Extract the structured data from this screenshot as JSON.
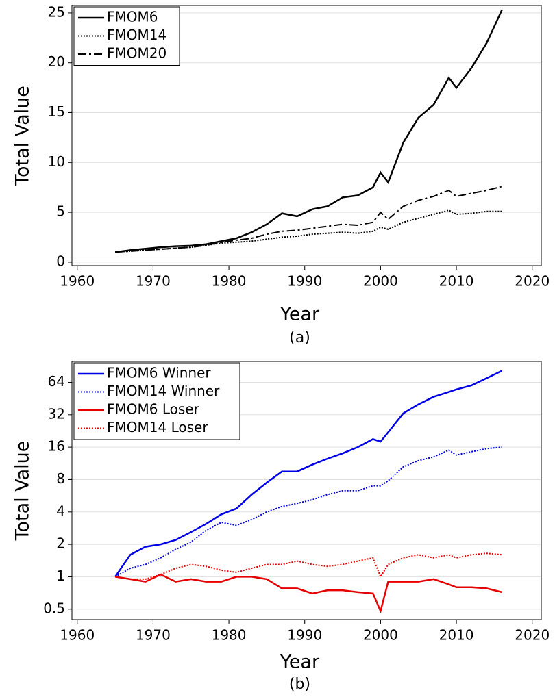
{
  "chart_data": [
    {
      "type": "line",
      "caption": "(a)",
      "xlabel": "Year",
      "ylabel": "Total Value",
      "xlim": [
        1959.3,
        2021.2
      ],
      "xticks": [
        1960,
        1970,
        1980,
        1990,
        2000,
        2010,
        2020
      ],
      "ylim": [
        -0.35,
        25.75
      ],
      "yticks": [
        0,
        5,
        10,
        15,
        20,
        25
      ],
      "log_y": false,
      "grid": true,
      "legend": "upper left",
      "x": [
        1965,
        1967,
        1969,
        1971,
        1973,
        1975,
        1977,
        1979,
        1981,
        1983,
        1985,
        1987,
        1989,
        1991,
        1993,
        1995,
        1997,
        1999,
        2000,
        2001,
        2003,
        2005,
        2007,
        2009,
        2010,
        2012,
        2014,
        2016
      ],
      "series": [
        {
          "name": "FMOM6",
          "color": "#000000",
          "style": "solid",
          "values": [
            1.0,
            1.2,
            1.35,
            1.5,
            1.6,
            1.65,
            1.8,
            2.1,
            2.4,
            3.0,
            3.8,
            4.9,
            4.6,
            5.3,
            5.6,
            6.5,
            6.7,
            7.5,
            9.0,
            8.0,
            12,
            14.5,
            15.8,
            18.5,
            17.5,
            19.5,
            22,
            25.3
          ]
        },
        {
          "name": "FMOM14",
          "color": "#000000",
          "style": "dotted",
          "values": [
            1.0,
            1.1,
            1.2,
            1.3,
            1.4,
            1.5,
            1.7,
            1.9,
            2.0,
            2.1,
            2.3,
            2.5,
            2.6,
            2.8,
            2.9,
            3.0,
            2.9,
            3.1,
            3.5,
            3.3,
            4.0,
            4.4,
            4.8,
            5.2,
            4.8,
            4.9,
            5.1,
            5.1
          ]
        },
        {
          "name": "FMOM20",
          "color": "#000000",
          "style": "dashdot",
          "values": [
            1.0,
            1.1,
            1.2,
            1.3,
            1.4,
            1.5,
            1.7,
            2.0,
            2.2,
            2.4,
            2.8,
            3.1,
            3.2,
            3.4,
            3.6,
            3.8,
            3.7,
            4.0,
            5.0,
            4.3,
            5.6,
            6.2,
            6.6,
            7.2,
            6.6,
            6.9,
            7.2,
            7.6
          ]
        }
      ]
    },
    {
      "type": "line",
      "caption": "(b)",
      "xlabel": "Year",
      "ylabel": "Total Value",
      "xlim": [
        1959.3,
        2021.2
      ],
      "xticks": [
        1960,
        1970,
        1980,
        1990,
        2000,
        2010,
        2020
      ],
      "ylim": [
        0.4,
        100
      ],
      "yticks": [
        0.5,
        1,
        2,
        4,
        8,
        16,
        32,
        64
      ],
      "log_y": true,
      "grid": true,
      "legend": "upper left",
      "x": [
        1965,
        1967,
        1969,
        1971,
        1973,
        1975,
        1977,
        1979,
        1981,
        1983,
        1985,
        1987,
        1989,
        1991,
        1993,
        1995,
        1997,
        1999,
        2000,
        2001,
        2003,
        2005,
        2007,
        2009,
        2010,
        2012,
        2014,
        2016
      ],
      "series": [
        {
          "name": "FMOM6 Winner",
          "color": "#0000e6",
          "style": "solid",
          "values": [
            1.0,
            1.6,
            1.9,
            2.0,
            2.2,
            2.6,
            3.1,
            3.8,
            4.3,
            5.8,
            7.5,
            9.5,
            9.5,
            11,
            12.5,
            14,
            16,
            19,
            18,
            22,
            33,
            40,
            47,
            52,
            55,
            60,
            70,
            82
          ]
        },
        {
          "name": "FMOM14 Winner",
          "color": "#0000e6",
          "style": "dotted",
          "values": [
            1.0,
            1.2,
            1.3,
            1.5,
            1.8,
            2.1,
            2.7,
            3.2,
            3.0,
            3.4,
            4.0,
            4.5,
            4.8,
            5.2,
            5.8,
            6.3,
            6.3,
            7.0,
            7.0,
            7.8,
            10.5,
            12,
            13,
            15,
            13.5,
            14.5,
            15.5,
            16
          ]
        },
        {
          "name": "FMOM6 Loser",
          "color": "#e60000",
          "style": "solid",
          "values": [
            1.0,
            0.95,
            0.9,
            1.05,
            0.9,
            0.95,
            0.9,
            0.9,
            1.0,
            1.0,
            0.95,
            0.78,
            0.78,
            0.7,
            0.75,
            0.75,
            0.72,
            0.7,
            0.48,
            0.9,
            0.9,
            0.9,
            0.95,
            0.85,
            0.8,
            0.8,
            0.78,
            0.72
          ]
        },
        {
          "name": "FMOM14 Loser",
          "color": "#e60000",
          "style": "dotted",
          "values": [
            1.0,
            0.95,
            0.95,
            1.05,
            1.2,
            1.3,
            1.25,
            1.15,
            1.1,
            1.2,
            1.3,
            1.3,
            1.4,
            1.3,
            1.25,
            1.3,
            1.4,
            1.5,
            1.0,
            1.3,
            1.5,
            1.6,
            1.5,
            1.6,
            1.5,
            1.6,
            1.65,
            1.6
          ]
        }
      ]
    }
  ]
}
